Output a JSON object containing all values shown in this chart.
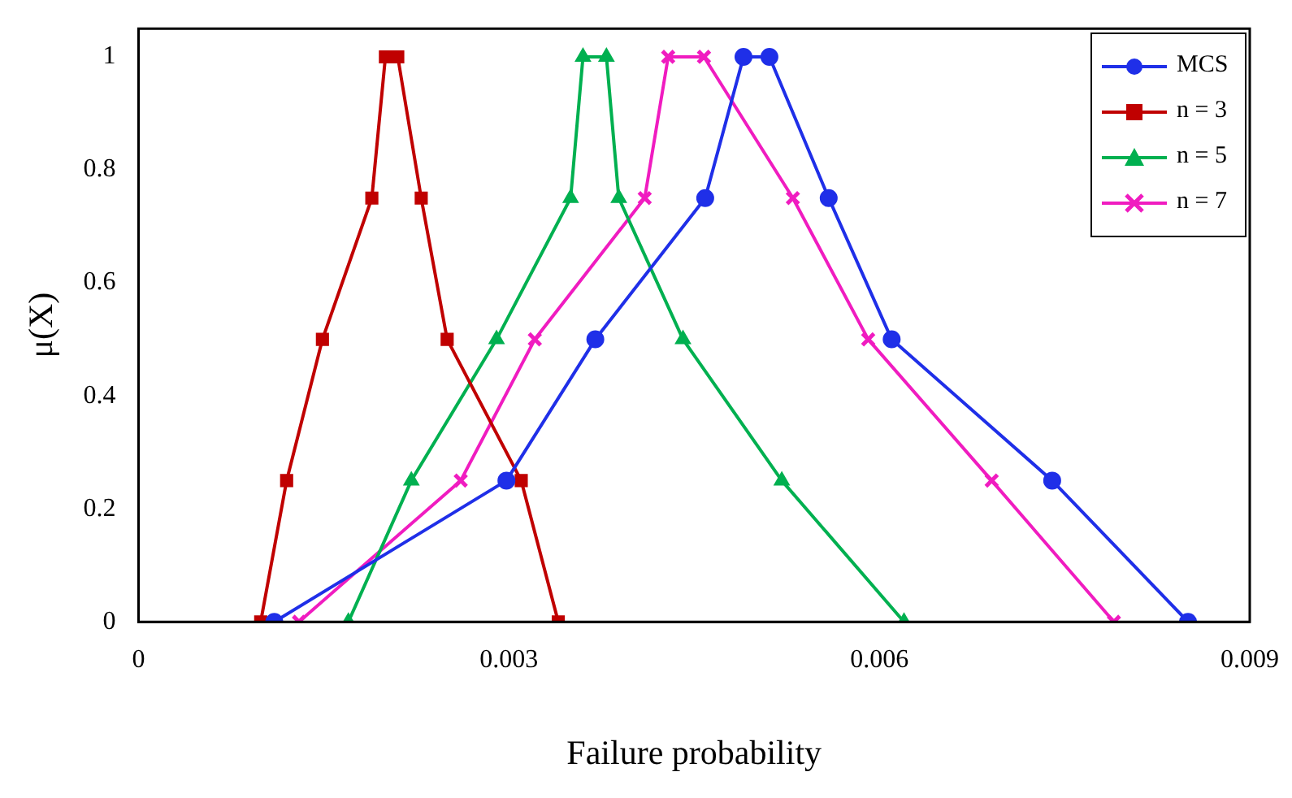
{
  "chart_data": {
    "type": "line",
    "xlabel": "Failure probability",
    "ylabel": "μ(X)",
    "xlim": [
      0,
      0.009
    ],
    "xticks": [
      0,
      0.003,
      0.006,
      0.009
    ],
    "ylim": [
      0,
      1.05
    ],
    "yticks": [
      0,
      0.2,
      0.4,
      0.6,
      0.8,
      1
    ],
    "grid": false,
    "legend": "top right",
    "series": [
      {
        "name": "MCS",
        "color": "#1f2fe8",
        "marker": "circle",
        "x": [
          0.0011,
          0.00298,
          0.0037,
          0.00459,
          0.0049,
          0.00511,
          0.00559,
          0.0061,
          0.0074,
          0.0085
        ],
        "values": [
          0,
          0.25,
          0.5,
          0.75,
          1,
          1,
          0.75,
          0.5,
          0.25,
          0
        ]
      },
      {
        "name": "n = 3",
        "color": "#c00000",
        "marker": "square",
        "x": [
          0.00099,
          0.0012,
          0.00149,
          0.00189,
          0.002,
          0.0021,
          0.00229,
          0.0025,
          0.0031,
          0.0034
        ],
        "values": [
          0,
          0.25,
          0.5,
          0.75,
          1,
          1,
          0.75,
          0.5,
          0.25,
          0
        ]
      },
      {
        "name": "n = 5",
        "color": "#00b050",
        "marker": "triangle",
        "x": [
          0.0017,
          0.00221,
          0.0029,
          0.0035,
          0.0036,
          0.00379,
          0.00389,
          0.00441,
          0.00521,
          0.0062
        ],
        "values": [
          0,
          0.25,
          0.5,
          0.75,
          1,
          1,
          0.75,
          0.5,
          0.25,
          0
        ]
      },
      {
        "name": "n = 7",
        "color": "#f01cc0",
        "marker": "cross",
        "x": [
          0.0013,
          0.00261,
          0.00321,
          0.0041,
          0.00429,
          0.00458,
          0.0053,
          0.00591,
          0.00691,
          0.0079
        ],
        "values": [
          0,
          0.25,
          0.5,
          0.75,
          1,
          1,
          0.75,
          0.5,
          0.25,
          0
        ]
      }
    ]
  }
}
